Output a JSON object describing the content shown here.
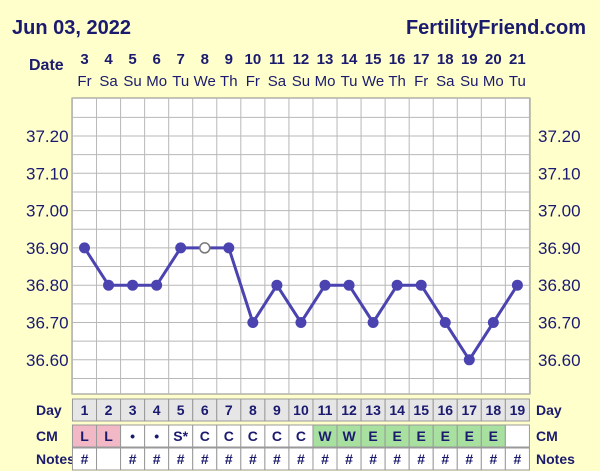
{
  "header": {
    "date": "Jun 03, 2022",
    "brand": "FertilityFriend.com"
  },
  "chart_data": {
    "type": "line",
    "title": "",
    "xlabel": "Date",
    "ylabel": "",
    "ylim": [
      36.5,
      37.3
    ],
    "y_ticks": [
      "37.20",
      "37.10",
      "37.00",
      "36.90",
      "36.80",
      "36.70",
      "36.60"
    ],
    "dates": [
      "3",
      "4",
      "5",
      "6",
      "7",
      "8",
      "9",
      "10",
      "11",
      "12",
      "13",
      "14",
      "15",
      "16",
      "17",
      "18",
      "19",
      "20",
      "21"
    ],
    "weekdays": [
      "Fr",
      "Sa",
      "Su",
      "Mo",
      "Tu",
      "We",
      "Th",
      "Fr",
      "Sa",
      "Su",
      "Mo",
      "Tu",
      "We",
      "Th",
      "Fr",
      "Sa",
      "Su",
      "Mo",
      "Tu"
    ],
    "values": [
      36.9,
      36.8,
      36.8,
      36.8,
      36.9,
      36.9,
      36.9,
      36.7,
      36.8,
      36.7,
      36.8,
      36.8,
      36.7,
      36.8,
      36.8,
      36.7,
      36.6,
      36.7,
      36.8
    ],
    "open_points": [
      5
    ],
    "grid": true,
    "line_color": "#4b44b0"
  },
  "rows": {
    "day": {
      "label": "Day",
      "values": [
        "1",
        "2",
        "3",
        "4",
        "5",
        "6",
        "7",
        "8",
        "9",
        "10",
        "11",
        "12",
        "13",
        "14",
        "15",
        "16",
        "17",
        "18",
        "19"
      ]
    },
    "cm": {
      "label": "CM",
      "values": [
        "L",
        "L",
        "•",
        "•",
        "S*",
        "C",
        "C",
        "C",
        "C",
        "C",
        "W",
        "W",
        "E",
        "E",
        "E",
        "E",
        "E",
        "E",
        ""
      ],
      "colors": [
        "#f2b8c6",
        "#f2b8c6",
        "#ffffff",
        "#ffffff",
        "#ffffff",
        "#ffffff",
        "#ffffff",
        "#ffffff",
        "#ffffff",
        "#ffffff",
        "#a8e0a0",
        "#a8e0a0",
        "#a8e0a0",
        "#a8e0a0",
        "#a8e0a0",
        "#a8e0a0",
        "#a8e0a0",
        "#a8e0a0",
        "#ffffff"
      ]
    },
    "notes": {
      "label": "Notes",
      "values": [
        "#",
        "",
        "#",
        "#",
        "#",
        "#",
        "#",
        "#",
        "#",
        "#",
        "#",
        "#",
        "#",
        "#",
        "#",
        "#",
        "#",
        "#",
        "#"
      ]
    }
  }
}
